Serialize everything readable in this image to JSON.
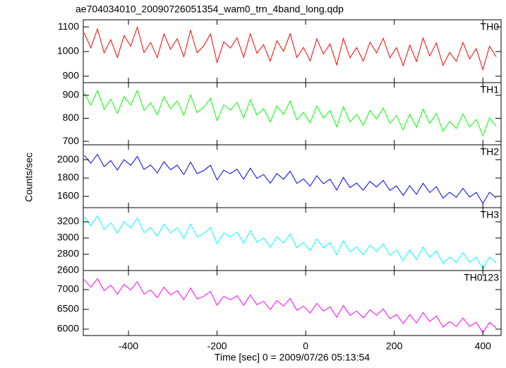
{
  "chart_data": {
    "type": "line",
    "title": "ae704034010_20090726051354_wam0_trn_4band_long.qdp",
    "xlabel": "Time [sec] 0 = 2009/07/26 05:13:54",
    "ylabel": "Counts/sec",
    "xlim": [
      -502,
      441
    ],
    "xticks": [
      -400,
      -200,
      0,
      200,
      400
    ],
    "x": [
      -500,
      -485,
      -470,
      -455,
      -440,
      -425,
      -410,
      -395,
      -380,
      -365,
      -350,
      -335,
      -320,
      -305,
      -290,
      -275,
      -260,
      -245,
      -230,
      -215,
      -200,
      -185,
      -170,
      -155,
      -140,
      -125,
      -110,
      -95,
      -80,
      -65,
      -50,
      -35,
      -20,
      -5,
      10,
      25,
      40,
      55,
      70,
      85,
      100,
      115,
      130,
      145,
      160,
      175,
      190,
      205,
      220,
      235,
      250,
      265,
      280,
      295,
      310,
      325,
      340,
      355,
      370,
      385,
      400,
      415,
      430
    ],
    "panels": [
      {
        "ylim": [
          874,
          1129
        ],
        "yticks": [
          900,
          1000,
          1100
        ],
        "series": [
          {
            "name": "TH0",
            "color": "#ff0000",
            "values": [
              1076,
              1015,
              1092,
              995,
              1048,
              976,
              1065,
              1022,
              1099,
              996,
              1037,
              976,
              1071,
              1010,
              1052,
              979,
              1086,
              995,
              1024,
              1071,
              956,
              1039,
              1014,
              1056,
              977,
              1072,
              993,
              1028,
              961,
              1044,
              1001,
              1072,
              976,
              1017,
              962,
              1051,
              990,
              1031,
              946,
              1053,
              975,
              1016,
              961,
              1038,
              995,
              1054,
              975,
              1016,
              943,
              1026,
              960,
              1055,
              982,
              1035,
              944,
              997,
              960,
              1037,
              970,
              1012,
              927,
              1022,
              979
            ]
          }
        ]
      },
      {
        "ylim": [
          685,
          955
        ],
        "yticks": [
          700,
          800,
          900
        ],
        "series": [
          {
            "name": "TH1",
            "color": "#00ff00",
            "values": [
              910,
              858,
              921,
              840,
              883,
              821,
              894,
              858,
              921,
              834,
              867,
              815,
              894,
              842,
              875,
              813,
              902,
              825,
              848,
              886,
              790,
              858,
              836,
              869,
              802,
              881,
              814,
              842,
              785,
              854,
              817,
              875,
              793,
              826,
              780,
              853,
              801,
              834,
              763,
              851,
              784,
              817,
              770,
              834,
              797,
              845,
              778,
              812,
              750,
              818,
              761,
              840,
              778,
              821,
              744,
              787,
              756,
              819,
              762,
              795,
              724,
              802,
              765
            ]
          }
        ]
      },
      {
        "ylim": [
          1477,
          2162
        ],
        "yticks": [
          1600,
          1800,
          2000
        ],
        "series": [
          {
            "name": "TH2",
            "color": "#0000ff",
            "values": [
              2048,
              1961,
              2059,
              1924,
              1990,
              1887,
              2000,
              1938,
              2035,
              1893,
              1942,
              1855,
              1977,
              1890,
              1940,
              1837,
              1974,
              1848,
              1881,
              1939,
              1780,
              1885,
              1847,
              1896,
              1786,
              1907,
              1796,
              1838,
              1743,
              1849,
              1786,
              1875,
              1741,
              1790,
              1712,
              1825,
              1738,
              1788,
              1669,
              1807,
              1696,
              1745,
              1667,
              1764,
              1702,
              1775,
              1664,
              1714,
              1611,
              1717,
              1622,
              1743,
              1641,
              1706,
              1580,
              1645,
              1590,
              1688,
              1593,
              1643,
              1524,
              1645,
              1583
            ]
          }
        ]
      },
      {
        "ylim": [
          2600,
          3374
        ],
        "yticks": [
          2600,
          2800,
          3000,
          3200
        ],
        "series": [
          {
            "name": "TH3",
            "color": "#00ffff",
            "values": [
              3260,
              3152,
              3274,
              3106,
              3188,
              3060,
              3202,
              3124,
              3246,
              3067,
              3129,
              3021,
              3173,
              3065,
              3127,
              2999,
              3171,
              3013,
              3055,
              3127,
              2929,
              3061,
              3013,
              3075,
              2937,
              3088,
              2950,
              3002,
              2884,
              3016,
              2938,
              3050,
              2882,
              2944,
              2846,
              2988,
              2880,
              2942,
              2794,
              2966,
              2828,
              2889,
              2791,
              2913,
              2835,
              2927,
              2789,
              2851,
              2723,
              2855,
              2737,
              2889,
              2761,
              2843,
              2685,
              2767,
              2699,
              2820,
              2702,
              2764,
              2616,
              2768,
              2690
            ]
          }
        ]
      },
      {
        "ylim": [
          5839,
          7482
        ],
        "yticks": [
          6000,
          6500,
          7000
        ],
        "series": [
          {
            "name": "TH0123",
            "color": "#ff00ff",
            "values": [
              7255,
              7062,
              7273,
              6974,
              7114,
              6886,
              7132,
              6991,
              7201,
              6885,
              6991,
              6797,
              7060,
              6866,
              6972,
              6744,
              7041,
              6760,
              6831,
              6953,
              6602,
              6830,
              6742,
              6847,
              6601,
              6864,
              6619,
              6706,
              6495,
              6724,
              6583,
              6775,
              6477,
              6583,
              6407,
              6652,
              6458,
              6564,
              6301,
              6598,
              6352,
              6458,
              6282,
              6492,
              6351,
              6510,
              6264,
              6369,
              6140,
              6369,
              6158,
              6420,
              6192,
              6333,
              6052,
              6192,
              6068,
              6279,
              6068,
              6173,
              5910,
              6173,
              6032
            ]
          }
        ]
      }
    ]
  }
}
